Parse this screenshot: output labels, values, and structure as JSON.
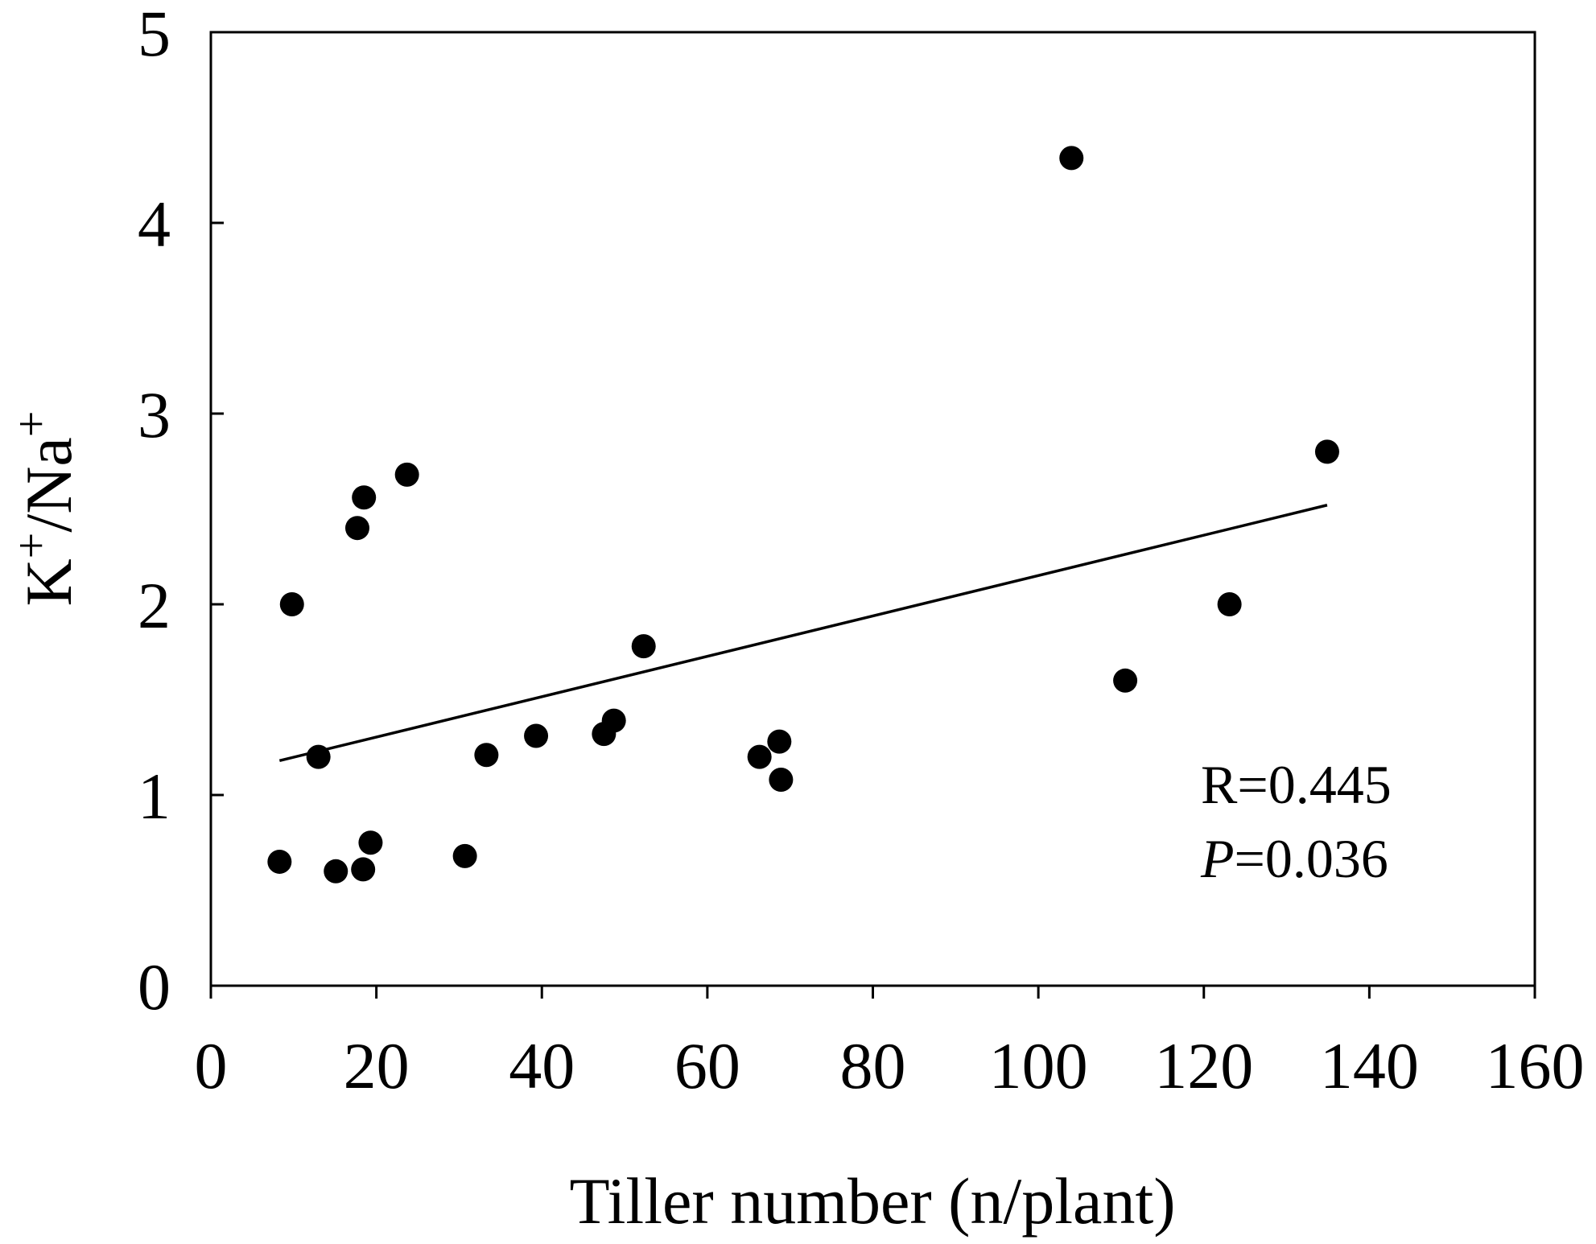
{
  "chart_data": {
    "type": "scatter",
    "xlabel": "Tiller number (n/plant)",
    "ylabel": {
      "parts": [
        "K",
        "+",
        "/Na",
        "+"
      ]
    },
    "xlim": [
      0,
      160
    ],
    "ylim": [
      0,
      5
    ],
    "xticks": [
      0,
      20,
      40,
      60,
      80,
      100,
      120,
      140,
      160
    ],
    "yticks": [
      0,
      1,
      2,
      3,
      4,
      5
    ],
    "grid": false,
    "marker_color": "#000000",
    "points": [
      {
        "x": 8.3,
        "y": 0.65
      },
      {
        "x": 9.8,
        "y": 2.0
      },
      {
        "x": 13.0,
        "y": 1.2
      },
      {
        "x": 15.1,
        "y": 0.6
      },
      {
        "x": 17.7,
        "y": 2.4
      },
      {
        "x": 18.4,
        "y": 0.61
      },
      {
        "x": 18.5,
        "y": 2.56
      },
      {
        "x": 19.3,
        "y": 0.75
      },
      {
        "x": 23.7,
        "y": 2.68
      },
      {
        "x": 30.7,
        "y": 0.68
      },
      {
        "x": 33.3,
        "y": 1.21
      },
      {
        "x": 39.3,
        "y": 1.31
      },
      {
        "x": 47.5,
        "y": 1.32
      },
      {
        "x": 48.7,
        "y": 1.39
      },
      {
        "x": 52.3,
        "y": 1.78
      },
      {
        "x": 66.3,
        "y": 1.2
      },
      {
        "x": 68.7,
        "y": 1.28
      },
      {
        "x": 68.9,
        "y": 1.08
      },
      {
        "x": 104.0,
        "y": 4.34
      },
      {
        "x": 110.5,
        "y": 1.6
      },
      {
        "x": 123.1,
        "y": 2.0
      },
      {
        "x": 134.9,
        "y": 2.8
      }
    ],
    "fit_line": {
      "x": [
        8.3,
        134.9
      ],
      "y": [
        1.18,
        2.52
      ]
    },
    "annotations": {
      "r_text": "R=0.445",
      "p_label": "P",
      "p_value": "=0.036"
    }
  }
}
